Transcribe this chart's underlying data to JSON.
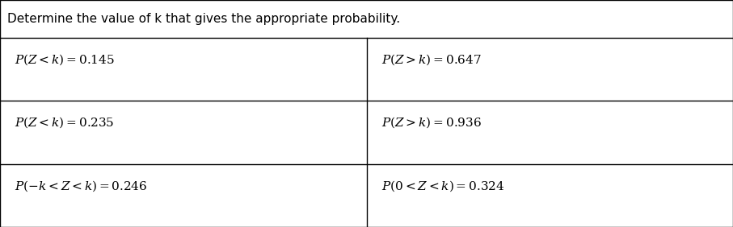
{
  "title": "Determine the value of k that gives the appropriate probability.",
  "cells": [
    [
      "$P(Z < k) =  0.145$",
      "$P(Z > k) =  0.647$"
    ],
    [
      "$P(Z < k) =  0.235$",
      "$P(Z > k) =  0.936$"
    ],
    [
      "$P(-k < Z < k) =  0.246$",
      "$P(0 < Z < k) =  0.324$"
    ]
  ],
  "background_color": "#ffffff",
  "border_color": "#000000",
  "text_color": "#000000",
  "title_fontsize": 11,
  "cell_fontsize": 11,
  "fig_width": 9.07,
  "fig_height": 2.82
}
